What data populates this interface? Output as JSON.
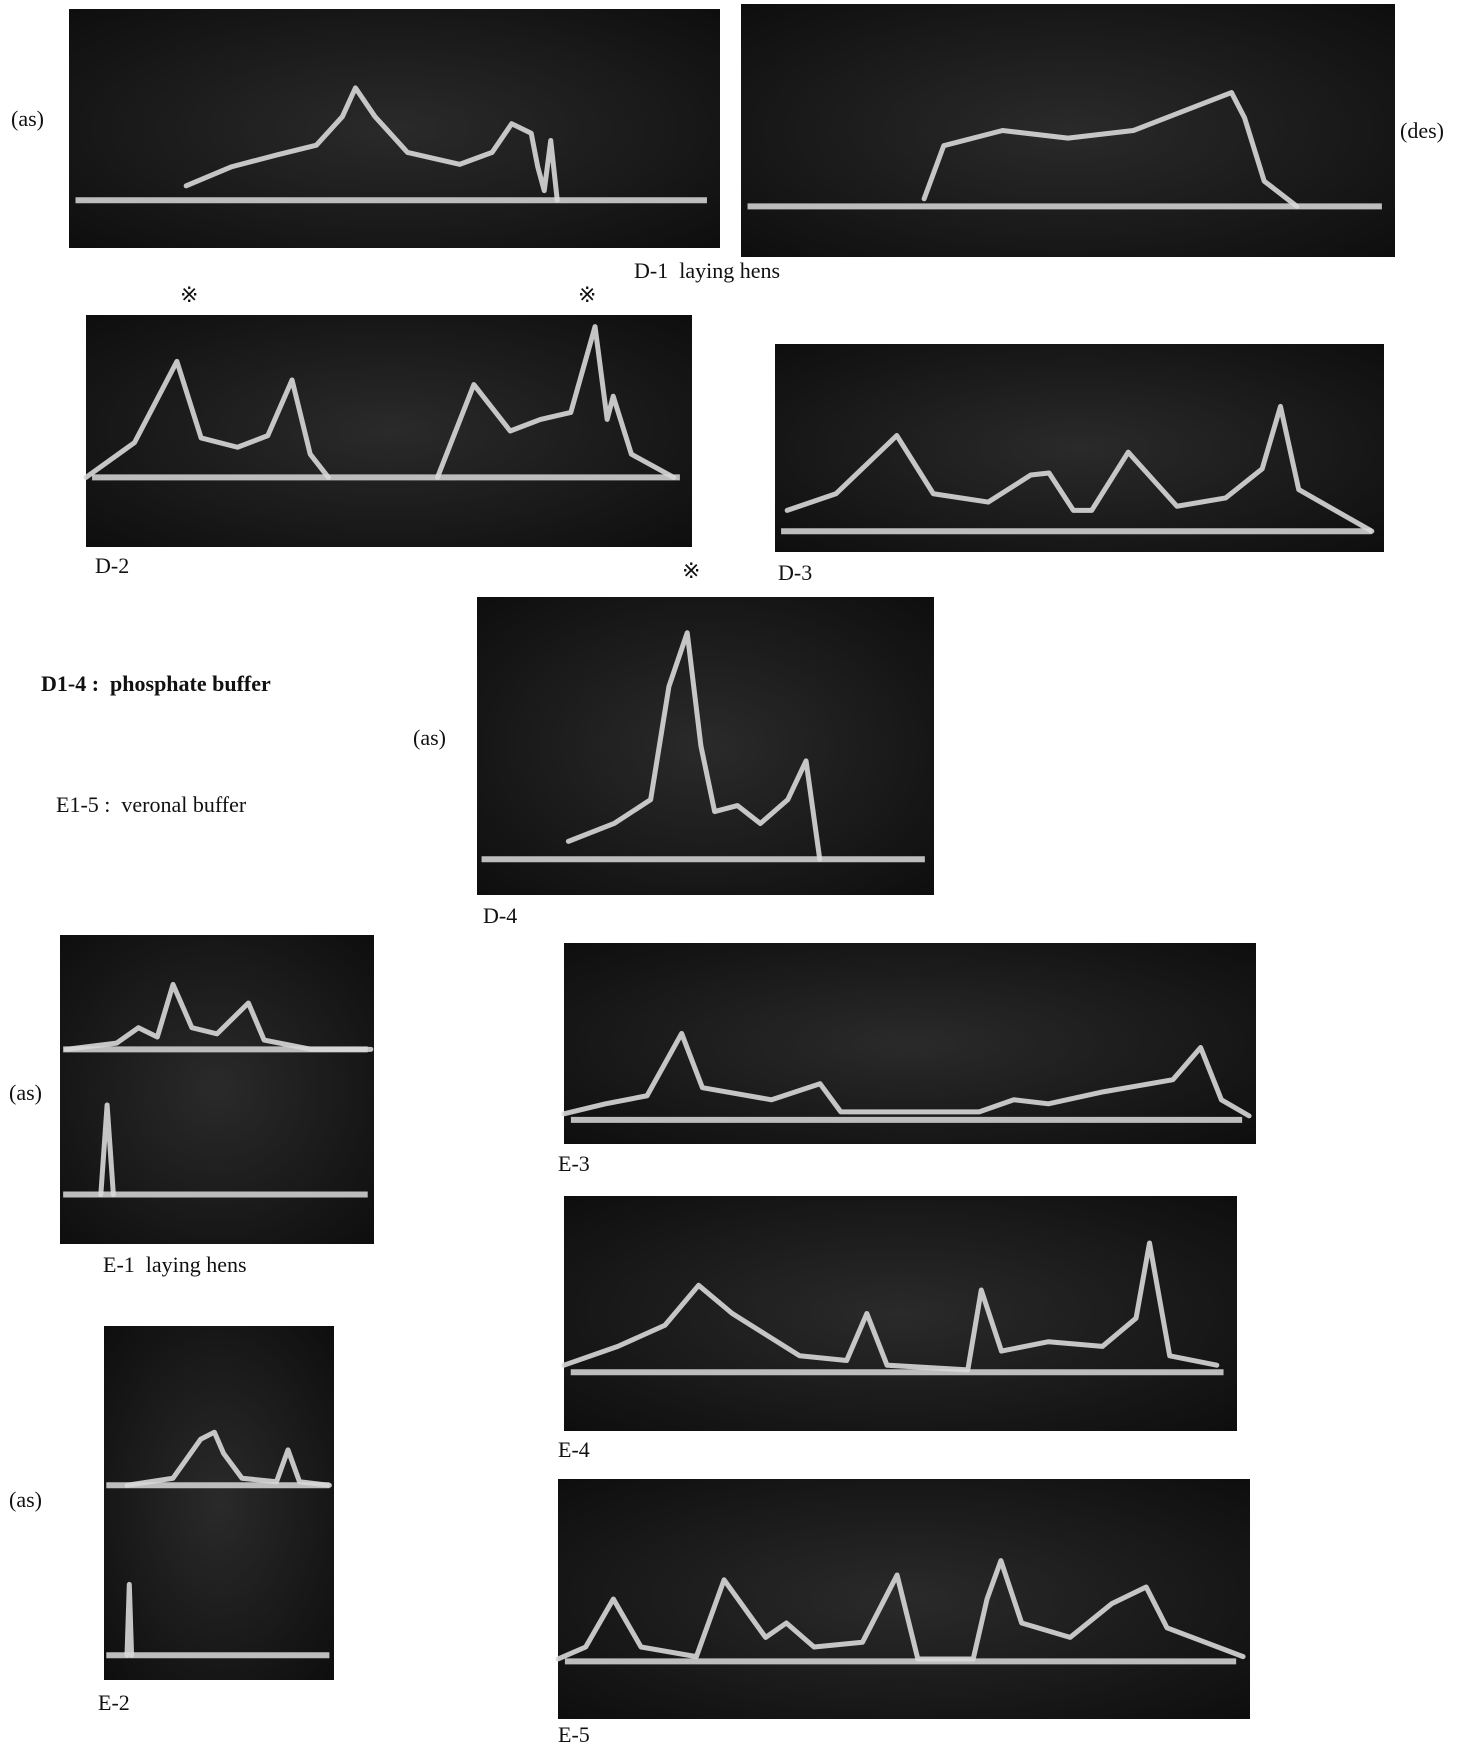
{
  "d1": {
    "left_note": "(as)",
    "right_note": "(des)",
    "label": "D-1  laying hens",
    "marks": [
      "※",
      "※"
    ]
  },
  "d2": {
    "label": "D-2"
  },
  "d3": {
    "label": "D-3",
    "mark": "※"
  },
  "d4": {
    "note": "(as)",
    "label": "D-4"
  },
  "legend": [
    "D1-4 :  phosphate buffer",
    "E1-5 :  veronal buffer"
  ],
  "e1": {
    "note": "(as)",
    "label": "E-1  laying hens"
  },
  "e2": {
    "note": "(as)",
    "label": "E-2"
  },
  "e3": {
    "label": "E-3"
  },
  "e4": {
    "label": "E-4"
  },
  "e5": {
    "label": "E-5"
  }
}
